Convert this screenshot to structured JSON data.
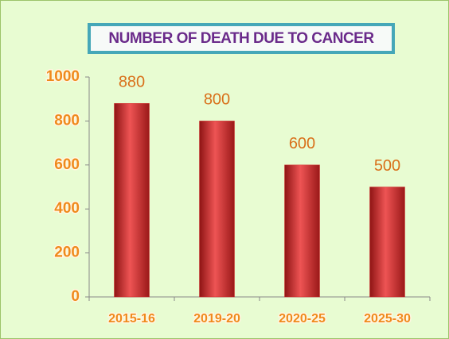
{
  "chart_data": {
    "type": "bar",
    "title": "NUMBER OF DEATH DUE TO CANCER",
    "categories": [
      "2015-16",
      "2019-20",
      "2020-25",
      "2025-30"
    ],
    "values": [
      880,
      800,
      600,
      500
    ],
    "color": "#d42a2a",
    "ylim": [
      0,
      1000
    ],
    "yticks": [
      0,
      200,
      400,
      600,
      800,
      1000
    ],
    "grid": false
  }
}
